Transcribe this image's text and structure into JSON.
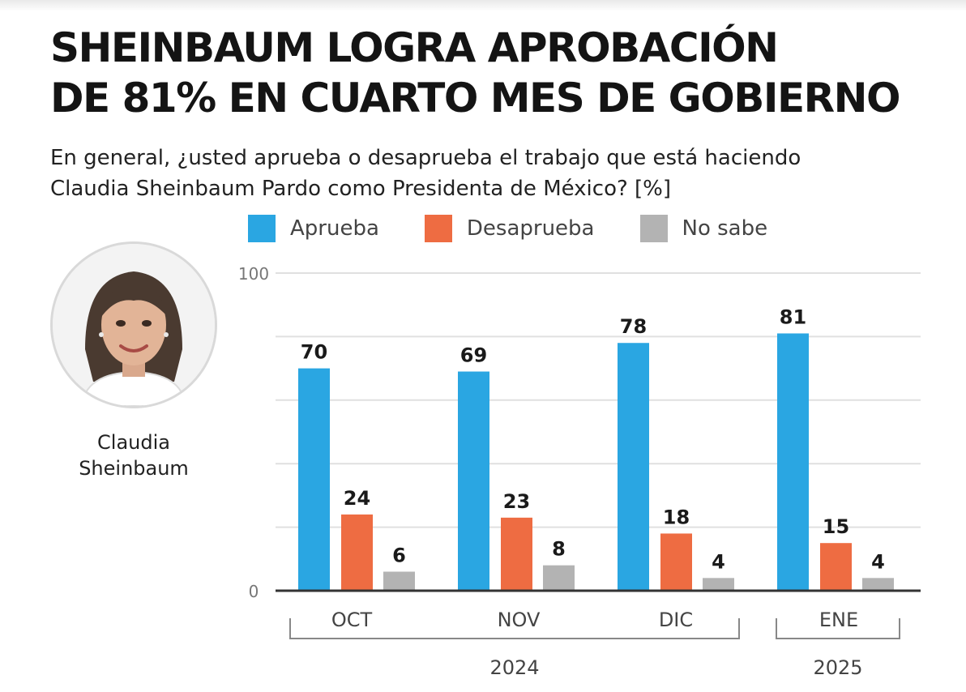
{
  "title": {
    "line1": "SHEINBAUM LOGRA APROBACIÓN",
    "line2": "DE 81% EN CUARTO MES DE GOBIERNO"
  },
  "subtitle": {
    "line1": "En general, ¿usted aprueba o desaprueba el trabajo que está haciendo",
    "line2": "Claudia Sheinbaum Pardo como Presidenta de México? [%]"
  },
  "person": {
    "name_line1": "Claudia",
    "name_line2": "Sheinbaum"
  },
  "colors": {
    "aprueba": "#2aa6e2",
    "desaprueba": "#ee6c42",
    "no_sabe": "#b3b3b3",
    "grid": "#e0e0e0",
    "axis": "#333333"
  },
  "chart_data": {
    "type": "bar",
    "categories": [
      "OCT",
      "NOV",
      "DIC",
      "ENE"
    ],
    "series": [
      {
        "name": "Aprueba",
        "values": [
          70,
          69,
          78,
          81
        ]
      },
      {
        "name": "Desaprueba",
        "values": [
          24,
          23,
          18,
          15
        ]
      },
      {
        "name": "No sabe",
        "values": [
          6,
          8,
          4,
          4
        ]
      }
    ],
    "ylim": [
      0,
      100
    ],
    "y_tick_labels": [
      "0",
      "100"
    ],
    "grid": true,
    "legend_position": "top",
    "year_groups": [
      {
        "label": "2024",
        "categories": [
          "OCT",
          "NOV",
          "DIC"
        ]
      },
      {
        "label": "2025",
        "categories": [
          "ENE"
        ]
      }
    ]
  }
}
